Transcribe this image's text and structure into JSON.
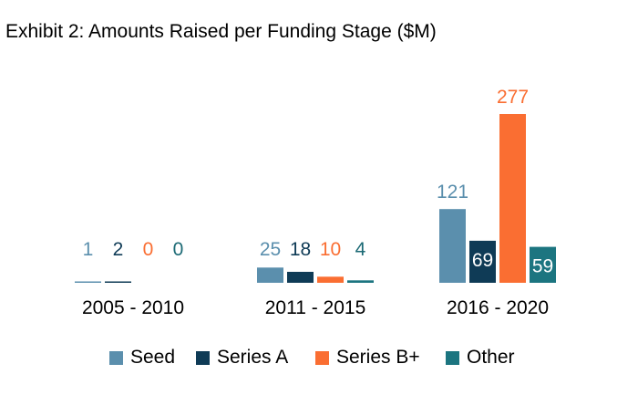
{
  "chart_data": {
    "type": "bar",
    "title": "Exhibit 2: Amounts Raised per Funding Stage ($M)",
    "categories": [
      "2005 - 2010",
      "2011 - 2015",
      "2016 - 2020"
    ],
    "series": [
      {
        "name": "Seed",
        "color": "#5b8fad",
        "label_color": "#5b8fad",
        "values": [
          1,
          25,
          121
        ]
      },
      {
        "name": "Series A",
        "color": "#0f3b56",
        "label_color": "#0f3b56",
        "values": [
          2,
          18,
          69
        ]
      },
      {
        "name": "Series B+",
        "color": "#fa6e32",
        "label_color": "#fa6e32",
        "values": [
          0,
          10,
          277
        ]
      },
      {
        "name": "Other",
        "color": "#1c7580",
        "label_color": "#1c6a75",
        "values": [
          0,
          4,
          59
        ]
      }
    ],
    "value_labels_inside": [
      [
        false,
        false,
        false,
        false
      ],
      [
        false,
        false,
        false,
        false
      ],
      [
        false,
        true,
        false,
        true
      ]
    ],
    "ylim": [
      0,
      277
    ],
    "grid": false,
    "legend_position": "bottom"
  }
}
